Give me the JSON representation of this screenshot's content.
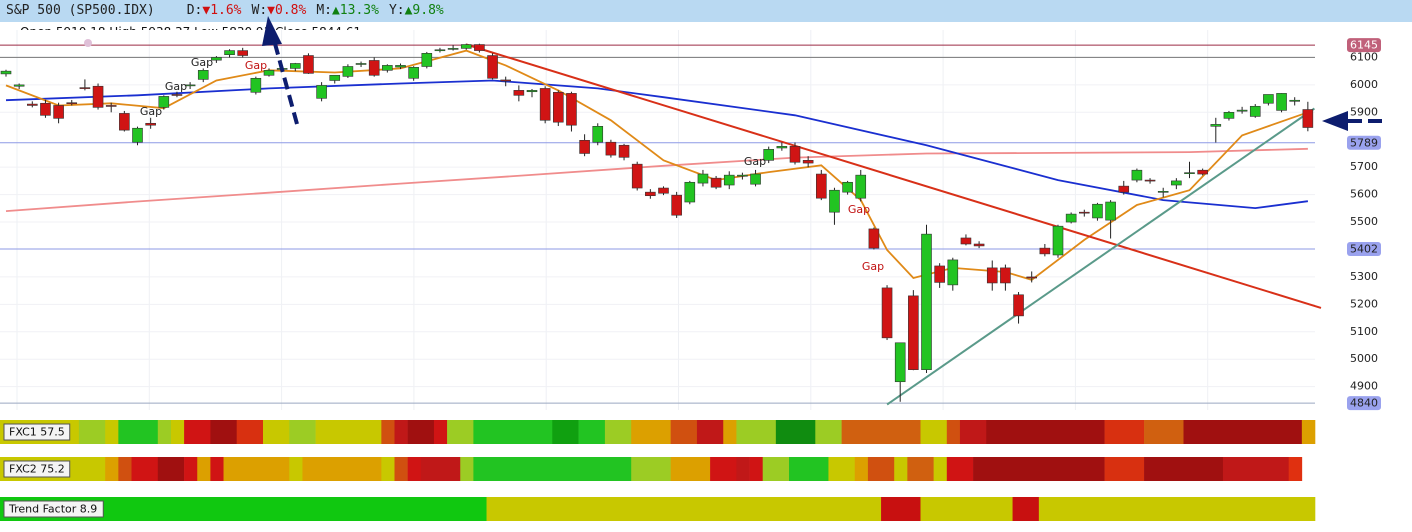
{
  "header": {
    "title": "S&P 500 (SP500.IDX)",
    "changes": [
      {
        "label": "D:",
        "value": "▼1.6%",
        "color": "#d01010"
      },
      {
        "label": "W:",
        "value": "▼0.8%",
        "color": "#d01010"
      },
      {
        "label": "M:",
        "value": "▲13.3%",
        "color": "#108010"
      },
      {
        "label": "Y:",
        "value": "▲9.8%",
        "color": "#108010"
      }
    ]
  },
  "ohlc": "Open 5910.18 High 5938.37 Low 5830.91 Close 5844.61",
  "chart_data": {
    "type": "candlestick",
    "up_color": "#22c422",
    "down_color": "#d01414",
    "open": [
      6040,
      5995,
      5930,
      5933,
      5925,
      5935,
      5990,
      5995,
      5925,
      5896,
      5791,
      5860,
      5918,
      5965,
      5998,
      6020,
      6090,
      6110,
      6125,
      5973,
      6035,
      6058,
      6060,
      6107,
      5951,
      6016,
      6031,
      6075,
      6089,
      6053,
      6065,
      6024,
      6067,
      6125,
      6130,
      6133,
      6147,
      6107,
      6018,
      5980,
      5975,
      5987,
      5973,
      5969,
      5798,
      5791,
      5791,
      5780,
      5711,
      5609,
      5624,
      5598,
      5573,
      5642,
      5660,
      5635,
      5667,
      5638,
      5725,
      5770,
      5776,
      5725,
      5675,
      5536,
      5609,
      5587,
      5475,
      5260,
      4918,
      5231,
      4962,
      5340,
      5271,
      5442,
      5420,
      5333,
      5333,
      5235,
      5300,
      5405,
      5380,
      5500,
      5536,
      5515,
      5507,
      5631,
      5653,
      5653,
      5609,
      5635,
      5678,
      5689,
      5849,
      5878,
      5904,
      5885,
      5933,
      5907,
      5940,
      5910.18
    ],
    "high": [
      6055,
      6005,
      5940,
      5945,
      5935,
      5945,
      6020,
      6005,
      5935,
      5905,
      5848,
      5880,
      5962,
      5975,
      6010,
      6060,
      6105,
      6130,
      6135,
      6030,
      6060,
      6070,
      6080,
      6115,
      6010,
      6035,
      6075,
      6085,
      6100,
      6075,
      6078,
      6068,
      6120,
      6135,
      6145,
      6150,
      6150,
      6115,
      6030,
      5998,
      5985,
      5995,
      5980,
      5975,
      5820,
      5860,
      5800,
      5785,
      5720,
      5620,
      5630,
      5610,
      5650,
      5690,
      5668,
      5685,
      5680,
      5690,
      5775,
      5790,
      5790,
      5740,
      5690,
      5625,
      5650,
      5690,
      5480,
      5270,
      5060,
      5252,
      5490,
      5350,
      5370,
      5455,
      5430,
      5360,
      5345,
      5245,
      5320,
      5420,
      5490,
      5535,
      5545,
      5570,
      5580,
      5650,
      5695,
      5660,
      5625,
      5660,
      5720,
      5695,
      5880,
      5905,
      5920,
      5930,
      5965,
      5970,
      5955,
      5938.37
    ],
    "low": [
      6030,
      5985,
      5918,
      5880,
      5860,
      5925,
      5980,
      5910,
      5900,
      5830,
      5780,
      5840,
      5910,
      5955,
      5985,
      6010,
      6080,
      6100,
      6100,
      5965,
      6030,
      6048,
      6050,
      6040,
      5940,
      6005,
      6025,
      6065,
      6030,
      6045,
      6058,
      6015,
      6060,
      6118,
      6125,
      6128,
      6118,
      6020,
      5995,
      5940,
      5955,
      5860,
      5850,
      5830,
      5740,
      5780,
      5735,
      5725,
      5615,
      5585,
      5598,
      5515,
      5565,
      5630,
      5620,
      5620,
      5655,
      5630,
      5715,
      5760,
      5710,
      5700,
      5580,
      5490,
      5600,
      5575,
      5400,
      5070,
      4845,
      4960,
      4950,
      5260,
      5250,
      5415,
      5405,
      5250,
      5250,
      5130,
      5280,
      5375,
      5370,
      5495,
      5520,
      5505,
      5440,
      5600,
      5645,
      5640,
      5590,
      5620,
      5660,
      5670,
      5790,
      5870,
      5895,
      5880,
      5925,
      5900,
      5925,
      5830.91
    ],
    "close": [
      6050,
      6000,
      5925,
      5889,
      5878,
      5932,
      5987,
      5918,
      5922,
      5835,
      5842,
      5853,
      5958,
      5962,
      6000,
      6053,
      6100,
      6125,
      6107,
      6024,
      6053,
      6060,
      6078,
      6042,
      5998,
      6035,
      6067,
      6078,
      6035,
      6071,
      6071,
      6064,
      6115,
      6128,
      6133,
      6147,
      6125,
      6024,
      6014,
      5962,
      5980,
      5871,
      5864,
      5853,
      5750,
      5849,
      5744,
      5736,
      5624,
      5596,
      5605,
      5525,
      5645,
      5675,
      5627,
      5671,
      5671,
      5675,
      5765,
      5776,
      5718,
      5715,
      5587,
      5616,
      5645,
      5671,
      5405,
      5078,
      5060,
      4962,
      5456,
      5280,
      5362,
      5420,
      5413,
      5278,
      5278,
      5158,
      5296,
      5384,
      5485,
      5529,
      5533,
      5565,
      5573,
      5609,
      5689,
      5650,
      5612,
      5650,
      5680,
      5675,
      5856,
      5900,
      5908,
      5922,
      5965,
      5969,
      5944,
      5844.61
    ],
    "ylim": [
      4815,
      6200
    ],
    "yticks": [
      4900,
      5000,
      5100,
      5200,
      5300,
      5500,
      5600,
      5700,
      5900,
      6000,
      6100
    ],
    "grid": true,
    "levels": [
      {
        "value": 6145,
        "color": "#9b2a44",
        "tag": "#c0607a",
        "tag_text": "#ffffff"
      },
      {
        "value": 6100,
        "color": "#777777"
      },
      {
        "value": 5789,
        "color": "#8d9ae6",
        "tag": "#9aa2ee",
        "tag_text": "#222222"
      },
      {
        "value": 5402,
        "color": "#8d9ae6",
        "tag": "#9aa2ee",
        "tag_text": "#222222"
      },
      {
        "value": 4840,
        "color": "#9aa8c0",
        "tag": "#9aa2ee",
        "tag_text": "#222222"
      }
    ],
    "lines": [
      {
        "color": "#f08c8c",
        "x": [
          0,
          10,
          20,
          30,
          40,
          50,
          60,
          70,
          80,
          90,
          99
        ],
        "values": [
          5540,
          5575,
          5607,
          5640,
          5672,
          5705,
          5735,
          5750,
          5752,
          5755,
          5767
        ]
      },
      {
        "color": "#1a2fd0",
        "x": [
          0,
          10,
          20,
          30,
          37,
          45,
          50,
          60,
          70,
          80,
          88,
          95,
          99
        ],
        "values": [
          5944,
          5962,
          5987,
          6005,
          6016,
          5987,
          5955,
          5889,
          5780,
          5653,
          5580,
          5551,
          5576
        ]
      },
      {
        "color": "#e08a18",
        "x": [
          0,
          4,
          8,
          12,
          16,
          20,
          25,
          30,
          35,
          38,
          42,
          46,
          50,
          54,
          58,
          62,
          65,
          67,
          69,
          72,
          76,
          78,
          82,
          86,
          90,
          94,
          99
        ],
        "values": [
          5998,
          5925,
          5933,
          5915,
          6016,
          6053,
          6045,
          6060,
          6125,
          6071,
          5980,
          5871,
          5725,
          5653,
          5682,
          5707,
          5580,
          5398,
          5296,
          5333,
          5318,
          5289,
          5435,
          5562,
          5616,
          5816,
          5900
        ]
      },
      {
        "color": "#d83018",
        "x": [
          35,
          100
        ],
        "values": [
          6147,
          5187
        ]
      },
      {
        "color": "#5a9a8a",
        "x": [
          67,
          99.5
        ],
        "values": [
          4835,
          5914
        ]
      }
    ],
    "annotations": [
      {
        "text": "Gap",
        "color": "#222222"
      },
      {
        "text": "Gap",
        "color": "#222222"
      },
      {
        "text": "Gap",
        "color": "#222222"
      },
      {
        "text": "Gap",
        "color": "#c01010"
      },
      {
        "text": "Gap",
        "color": "#222222"
      },
      {
        "text": "Gap",
        "color": "#c01010"
      },
      {
        "text": "Gap",
        "color": "#c01010"
      }
    ]
  },
  "strips": [
    {
      "label": "FXC1 57.5",
      "runs": [
        [
          "#c8c800",
          6
        ],
        [
          "#9ccc24",
          2
        ],
        [
          "#c8c800",
          1
        ],
        [
          "#22c422",
          3
        ],
        [
          "#9ccc24",
          1
        ],
        [
          "#c8c800",
          1
        ],
        [
          "#d01414",
          2
        ],
        [
          "#a01010",
          2
        ],
        [
          "#d83010",
          2
        ],
        [
          "#c8c800",
          2
        ],
        [
          "#9ccc24",
          2
        ],
        [
          "#c8c800",
          5
        ],
        [
          "#d05010",
          1
        ],
        [
          "#c01818",
          1
        ],
        [
          "#a01010",
          2
        ],
        [
          "#d01414",
          1
        ],
        [
          "#9ccc24",
          2
        ],
        [
          "#22c422",
          6
        ],
        [
          "#10a010",
          2
        ],
        [
          "#22c422",
          2
        ],
        [
          "#9ccc24",
          2
        ],
        [
          "#dca000",
          3
        ],
        [
          "#d05010",
          2
        ],
        [
          "#c01818",
          2
        ],
        [
          "#dca000",
          1
        ],
        [
          "#9ccc24",
          3
        ],
        [
          "#108c10",
          3
        ],
        [
          "#9ccc24",
          2
        ],
        [
          "#d06010",
          6
        ],
        [
          "#c8c800",
          2
        ],
        [
          "#d05010",
          1
        ],
        [
          "#c01818",
          2
        ],
        [
          "#a01010",
          9
        ],
        [
          "#d83010",
          3
        ],
        [
          "#d06010",
          3
        ],
        [
          "#a01010",
          9
        ],
        [
          "#dca000",
          1
        ]
      ]
    },
    {
      "label": "FXC2 75.2",
      "runs": [
        [
          "#c8c800",
          8
        ],
        [
          "#dca000",
          1
        ],
        [
          "#d05010",
          1
        ],
        [
          "#d01414",
          2
        ],
        [
          "#a01010",
          2
        ],
        [
          "#d01414",
          1
        ],
        [
          "#dca000",
          1
        ],
        [
          "#d01414",
          1
        ],
        [
          "#dca000",
          5
        ],
        [
          "#c8c800",
          1
        ],
        [
          "#dca000",
          6
        ],
        [
          "#c8c800",
          1
        ],
        [
          "#d05010",
          1
        ],
        [
          "#d01414",
          1
        ],
        [
          "#c01818",
          3
        ],
        [
          "#9ccc24",
          1
        ],
        [
          "#22c422",
          12
        ],
        [
          "#9ccc24",
          3
        ],
        [
          "#dca000",
          3
        ],
        [
          "#d01414",
          2
        ],
        [
          "#c01818",
          1
        ],
        [
          "#d01414",
          1
        ],
        [
          "#9ccc24",
          2
        ],
        [
          "#22c422",
          3
        ],
        [
          "#c8c800",
          2
        ],
        [
          "#dca000",
          1
        ],
        [
          "#d05010",
          2
        ],
        [
          "#c8c800",
          1
        ],
        [
          "#d06010",
          2
        ],
        [
          "#c8c800",
          1
        ],
        [
          "#d01414",
          2
        ],
        [
          "#a01010",
          10
        ],
        [
          "#d83010",
          3
        ],
        [
          "#a01010",
          6
        ],
        [
          "#c01818",
          5
        ],
        [
          "#e03010",
          1
        ]
      ]
    },
    {
      "label": "Trend Factor 8.9",
      "runs": [
        [
          "#10c810",
          37
        ],
        [
          "#c8c800",
          30
        ],
        [
          "#c81010",
          3
        ],
        [
          "#c8c800",
          7
        ],
        [
          "#c81010",
          2
        ],
        [
          "#c8c800",
          21
        ]
      ]
    }
  ]
}
